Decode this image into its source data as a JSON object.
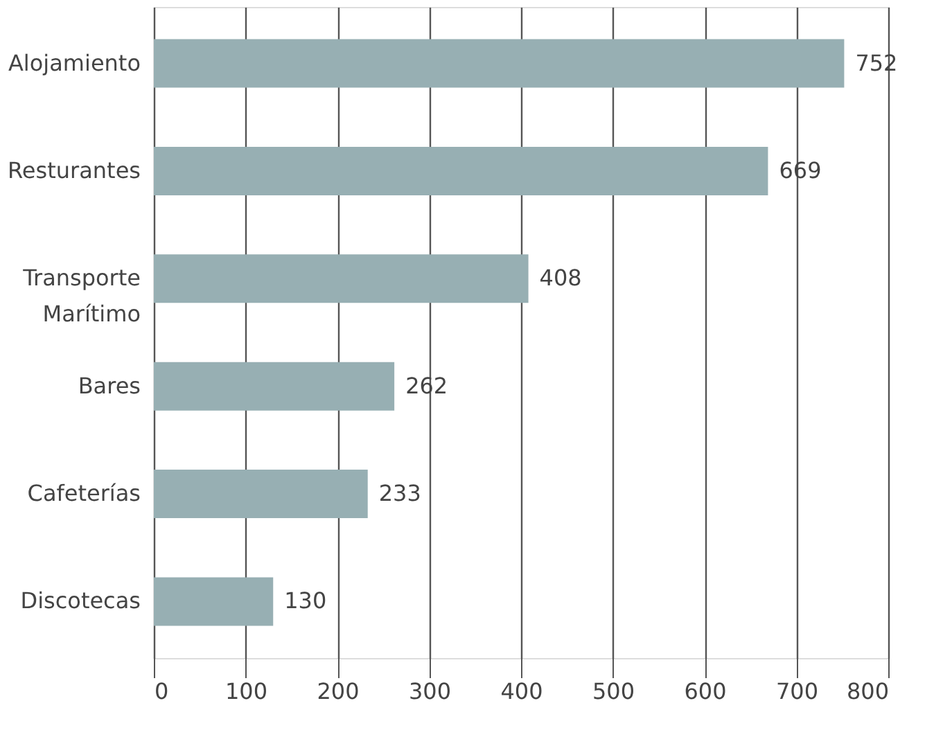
{
  "chart_data": {
    "type": "bar",
    "orientation": "horizontal",
    "categories": [
      "Alojamiento",
      "Resturantes",
      "Transporte\nMarítimo",
      "Bares",
      "Cafeterías",
      "Discotecas"
    ],
    "values": [
      752,
      669,
      408,
      262,
      233,
      130
    ],
    "color": "#97afb3",
    "xlim": [
      0,
      800
    ],
    "xticks": [
      0,
      100,
      200,
      300,
      400,
      500,
      600,
      700,
      800
    ],
    "grid": "x",
    "data_labels": true
  }
}
